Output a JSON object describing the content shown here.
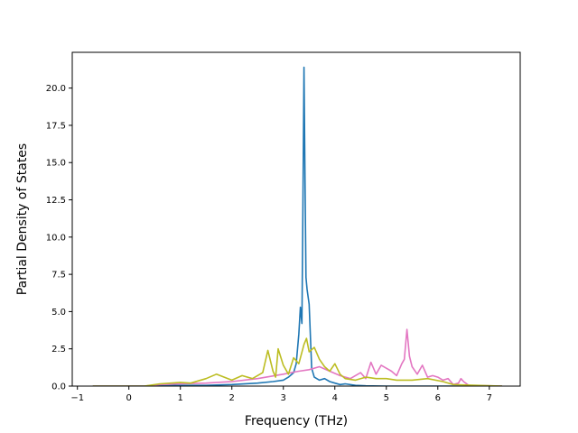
{
  "chart_data": {
    "type": "line",
    "title": "",
    "xlabel": "Frequency (THz)",
    "ylabel": "Partial Density of States",
    "xlim": [
      -1.1,
      7.6
    ],
    "ylim": [
      0,
      22.4
    ],
    "xticks": [
      -1,
      0,
      1,
      2,
      3,
      4,
      5,
      6,
      7
    ],
    "xtick_labels": [
      "−1",
      "0",
      "1",
      "2",
      "3",
      "4",
      "5",
      "6",
      "7"
    ],
    "yticks": [
      0,
      2.5,
      5,
      7.5,
      10,
      12.5,
      15,
      17.5,
      20
    ],
    "ytick_labels": [
      "0.0",
      "2.5",
      "5.0",
      "7.5",
      "10.0",
      "12.5",
      "15.0",
      "17.5",
      "20.0"
    ],
    "grid": false,
    "legend": "none",
    "series": [
      {
        "color": "#1f77b4",
        "x": [
          -0.7,
          0.3,
          1.0,
          1.5,
          2.0,
          2.5,
          2.8,
          3.0,
          3.1,
          3.2,
          3.25,
          3.3,
          3.33,
          3.36,
          3.38,
          3.4,
          3.42,
          3.44,
          3.46,
          3.5,
          3.55,
          3.6,
          3.7,
          3.8,
          3.9,
          4.0,
          4.1,
          4.2,
          4.4,
          4.6,
          5.0,
          6.0,
          7.25
        ],
        "y": [
          0,
          0,
          0.05,
          0.05,
          0.1,
          0.2,
          0.3,
          0.4,
          0.6,
          0.9,
          1.5,
          3.5,
          5.3,
          4.2,
          12.0,
          21.4,
          14.0,
          7.3,
          6.5,
          5.5,
          1.2,
          0.6,
          0.4,
          0.5,
          0.3,
          0.2,
          0.1,
          0.15,
          0.05,
          0.02,
          0,
          0,
          0
        ]
      },
      {
        "color": "#e377c2",
        "x": [
          -0.7,
          0.3,
          0.6,
          1.0,
          1.5,
          2.0,
          2.5,
          3.0,
          3.3,
          3.5,
          3.7,
          3.9,
          4.1,
          4.3,
          4.5,
          4.6,
          4.7,
          4.8,
          4.9,
          5.0,
          5.1,
          5.2,
          5.3,
          5.35,
          5.4,
          5.45,
          5.5,
          5.6,
          5.7,
          5.8,
          5.9,
          6.0,
          6.1,
          6.2,
          6.3,
          6.4,
          6.45,
          6.5,
          6.6,
          7.25
        ],
        "y": [
          0,
          0,
          0.1,
          0.15,
          0.2,
          0.3,
          0.5,
          0.8,
          1.0,
          1.1,
          1.3,
          1.0,
          0.7,
          0.5,
          0.9,
          0.5,
          1.6,
          0.8,
          1.4,
          1.2,
          1.0,
          0.7,
          1.5,
          1.8,
          3.8,
          2.0,
          1.3,
          0.8,
          1.4,
          0.6,
          0.7,
          0.6,
          0.4,
          0.5,
          0.1,
          0.2,
          0.5,
          0.3,
          0.05,
          0
        ]
      },
      {
        "color": "#bcbd22",
        "x": [
          -0.7,
          0.3,
          0.6,
          1.0,
          1.2,
          1.5,
          1.7,
          2.0,
          2.2,
          2.4,
          2.6,
          2.7,
          2.8,
          2.85,
          2.9,
          3.0,
          3.1,
          3.2,
          3.3,
          3.4,
          3.45,
          3.5,
          3.6,
          3.7,
          3.8,
          3.9,
          4.0,
          4.1,
          4.2,
          4.4,
          4.6,
          4.8,
          5.0,
          5.2,
          5.5,
          5.8,
          6.1,
          6.3,
          7.25
        ],
        "y": [
          0,
          0,
          0.15,
          0.25,
          0.2,
          0.5,
          0.8,
          0.4,
          0.7,
          0.5,
          0.9,
          2.4,
          1.0,
          0.6,
          2.5,
          1.4,
          0.8,
          1.9,
          1.5,
          2.8,
          3.2,
          2.3,
          2.6,
          1.8,
          1.3,
          1.0,
          1.5,
          0.8,
          0.5,
          0.4,
          0.6,
          0.5,
          0.5,
          0.4,
          0.4,
          0.5,
          0.3,
          0.1,
          0
        ]
      }
    ]
  }
}
